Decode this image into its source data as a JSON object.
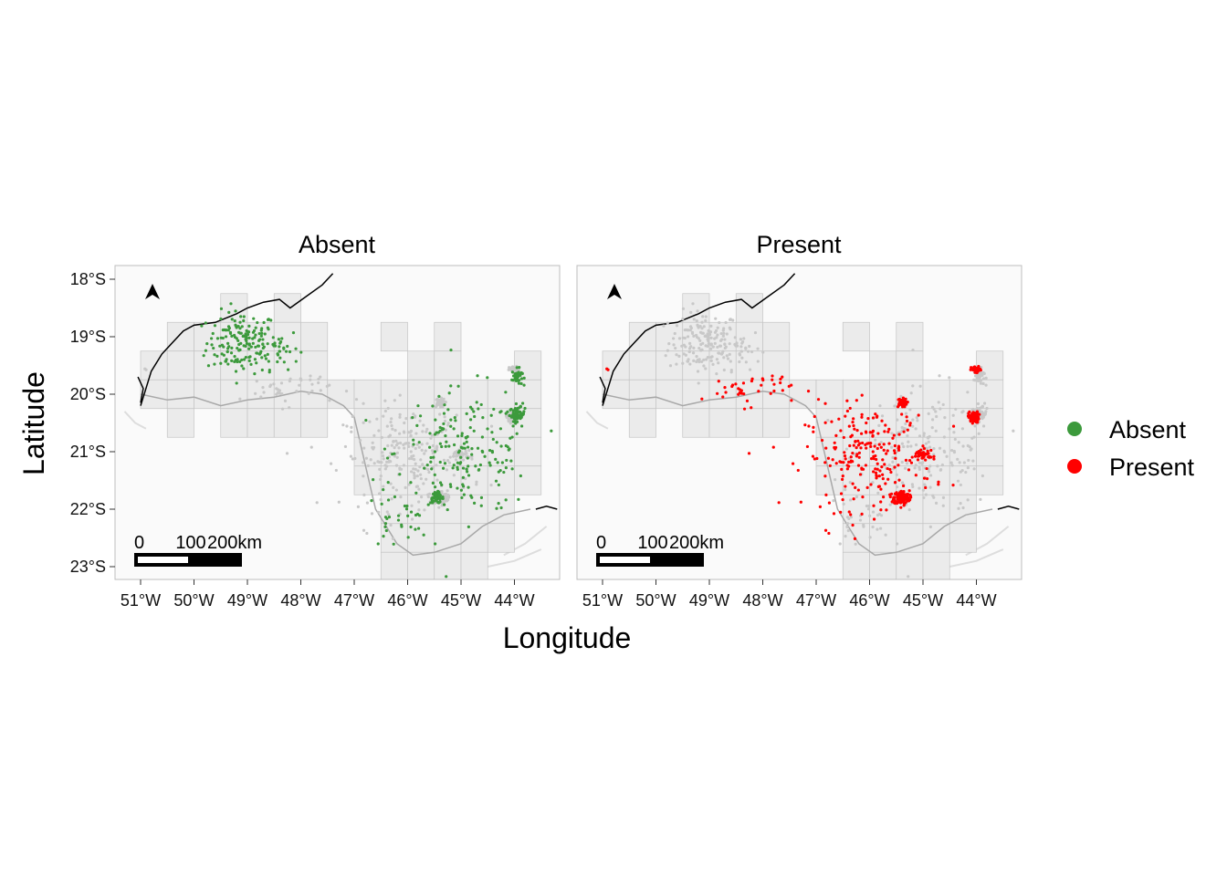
{
  "chart_data": {
    "type": "map",
    "panels": [
      {
        "title": "Absent",
        "highlight": "Absent"
      },
      {
        "title": "Present",
        "highlight": "Present"
      }
    ],
    "xlabel": "Longitude",
    "ylabel": "Latitude",
    "x_ticks": [
      {
        "value": -51,
        "label": "51°W"
      },
      {
        "value": -50,
        "label": "50°W"
      },
      {
        "value": -49,
        "label": "49°W"
      },
      {
        "value": -48,
        "label": "48°W"
      },
      {
        "value": -47,
        "label": "47°W"
      },
      {
        "value": -46,
        "label": "46°W"
      },
      {
        "value": -45,
        "label": "45°W"
      },
      {
        "value": -44,
        "label": "44°W"
      }
    ],
    "y_ticks": [
      {
        "value": -18,
        "label": "18°S"
      },
      {
        "value": -19,
        "label": "19°S"
      },
      {
        "value": -20,
        "label": "20°S"
      },
      {
        "value": -21,
        "label": "21°S"
      },
      {
        "value": -22,
        "label": "22°S"
      },
      {
        "value": -23,
        "label": "23°S"
      }
    ],
    "xlim": [
      -51.4,
      -43.1
    ],
    "ylim": [
      -23.2,
      -17.8
    ],
    "grid_cell_deg": 0.5,
    "scale_bar": {
      "labels": [
        "0",
        "100",
        "200km"
      ]
    },
    "north_arrow": true,
    "legend": {
      "position": "right",
      "entries": [
        {
          "label": "Absent",
          "color": "#3c9a3c"
        },
        {
          "label": "Present",
          "color": "#ff0000"
        }
      ]
    },
    "colors": {
      "panel_bg": "#fafafa",
      "cell_fill": "#ebebeb",
      "cell_border": "#c4c4c4",
      "background_points": "#c8c8c8",
      "coast": "#000000",
      "neighbor_borders": "#dddddd"
    },
    "clusters": [
      {
        "cls": "Absent",
        "center": [
          -49.1,
          -19.1
        ],
        "spread": [
          0.55,
          0.45
        ],
        "n": 160
      },
      {
        "cls": "Absent",
        "center": [
          -48.4,
          -19.2
        ],
        "spread": [
          0.3,
          0.3
        ],
        "n": 30
      },
      {
        "cls": "Absent",
        "center": [
          -43.95,
          -19.7
        ],
        "spread": [
          0.08,
          0.12
        ],
        "n": 40
      },
      {
        "cls": "Absent",
        "center": [
          -43.95,
          -20.35
        ],
        "spread": [
          0.12,
          0.1
        ],
        "n": 60
      },
      {
        "cls": "Absent",
        "center": [
          -45.45,
          -21.8
        ],
        "spread": [
          0.1,
          0.08
        ],
        "n": 50
      },
      {
        "cls": "Absent",
        "center": [
          -44.9,
          -21.0
        ],
        "spread": [
          1.1,
          0.9
        ],
        "n": 190
      },
      {
        "cls": "Absent",
        "center": [
          -46.2,
          -22.2
        ],
        "spread": [
          0.5,
          0.4
        ],
        "n": 30
      },
      {
        "cls": "Present",
        "center": [
          -45.4,
          -21.8
        ],
        "spread": [
          0.12,
          0.1
        ],
        "n": 160
      },
      {
        "cls": "Present",
        "center": [
          -45.4,
          -20.15
        ],
        "spread": [
          0.08,
          0.06
        ],
        "n": 60
      },
      {
        "cls": "Present",
        "center": [
          -44.05,
          -20.4
        ],
        "spread": [
          0.08,
          0.08
        ],
        "n": 70
      },
      {
        "cls": "Present",
        "center": [
          -44.0,
          -19.58
        ],
        "spread": [
          0.08,
          0.05
        ],
        "n": 35
      },
      {
        "cls": "Present",
        "center": [
          -45.0,
          -21.05
        ],
        "spread": [
          0.15,
          0.06
        ],
        "n": 40
      },
      {
        "cls": "Present",
        "center": [
          -46.0,
          -21.1
        ],
        "spread": [
          1.0,
          0.75
        ],
        "n": 230
      },
      {
        "cls": "Present",
        "center": [
          -48.3,
          -19.9
        ],
        "spread": [
          0.7,
          0.25
        ],
        "n": 40
      },
      {
        "cls": "Present",
        "center": [
          -50.9,
          -19.6
        ],
        "spread": [
          0.03,
          0.03
        ],
        "n": 2
      }
    ]
  }
}
